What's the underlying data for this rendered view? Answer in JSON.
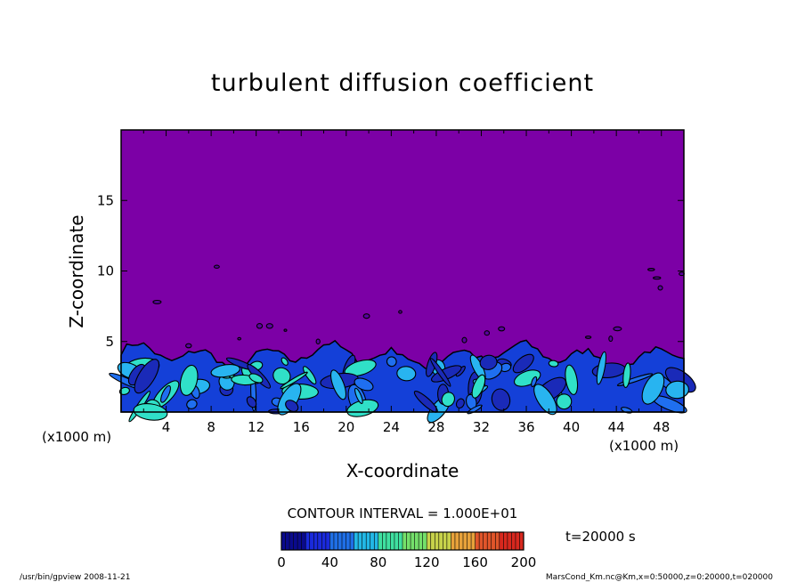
{
  "footer": {
    "left": "/usr/bin/gpview  2008-11-21",
    "right": "MarsCond_Km.nc@Km,x=0:50000,z=0:20000,t=020000"
  },
  "chart_data": {
    "type": "heatmap",
    "title": "turbulent diffusion coefficient",
    "xlabel": "X-coordinate",
    "ylabel": "Z-coordinate",
    "x_unit": "(x1000 m)",
    "y_unit": "(x1000 m)",
    "xlim": [
      0,
      50
    ],
    "ylim": [
      0,
      20
    ],
    "x_ticks": [
      4,
      8,
      12,
      16,
      20,
      24,
      28,
      32,
      36,
      40,
      44,
      48
    ],
    "y_ticks": [
      5,
      10,
      15
    ],
    "contour_interval": "CONTOUR INTERVAL = 1.000E+01",
    "time_label": "t=20000 s",
    "colorbar": {
      "min": 0,
      "max": 200,
      "ticks": [
        0,
        40,
        80,
        120,
        160,
        200
      ],
      "colors": [
        "#0a0a8c",
        "#1a2adc",
        "#1f6fe6",
        "#22b8e6",
        "#3fe0a0",
        "#74e06a",
        "#c7d24a",
        "#e8a23a",
        "#e0552a",
        "#d8281e"
      ]
    },
    "background_value_color": "#7c00a6",
    "turbulent_layer_top_km": 4.3,
    "layer_colors": [
      "#1440d8",
      "#1f6ff0",
      "#28b4f0",
      "#1a2ab8",
      "#30e0c8"
    ]
  }
}
